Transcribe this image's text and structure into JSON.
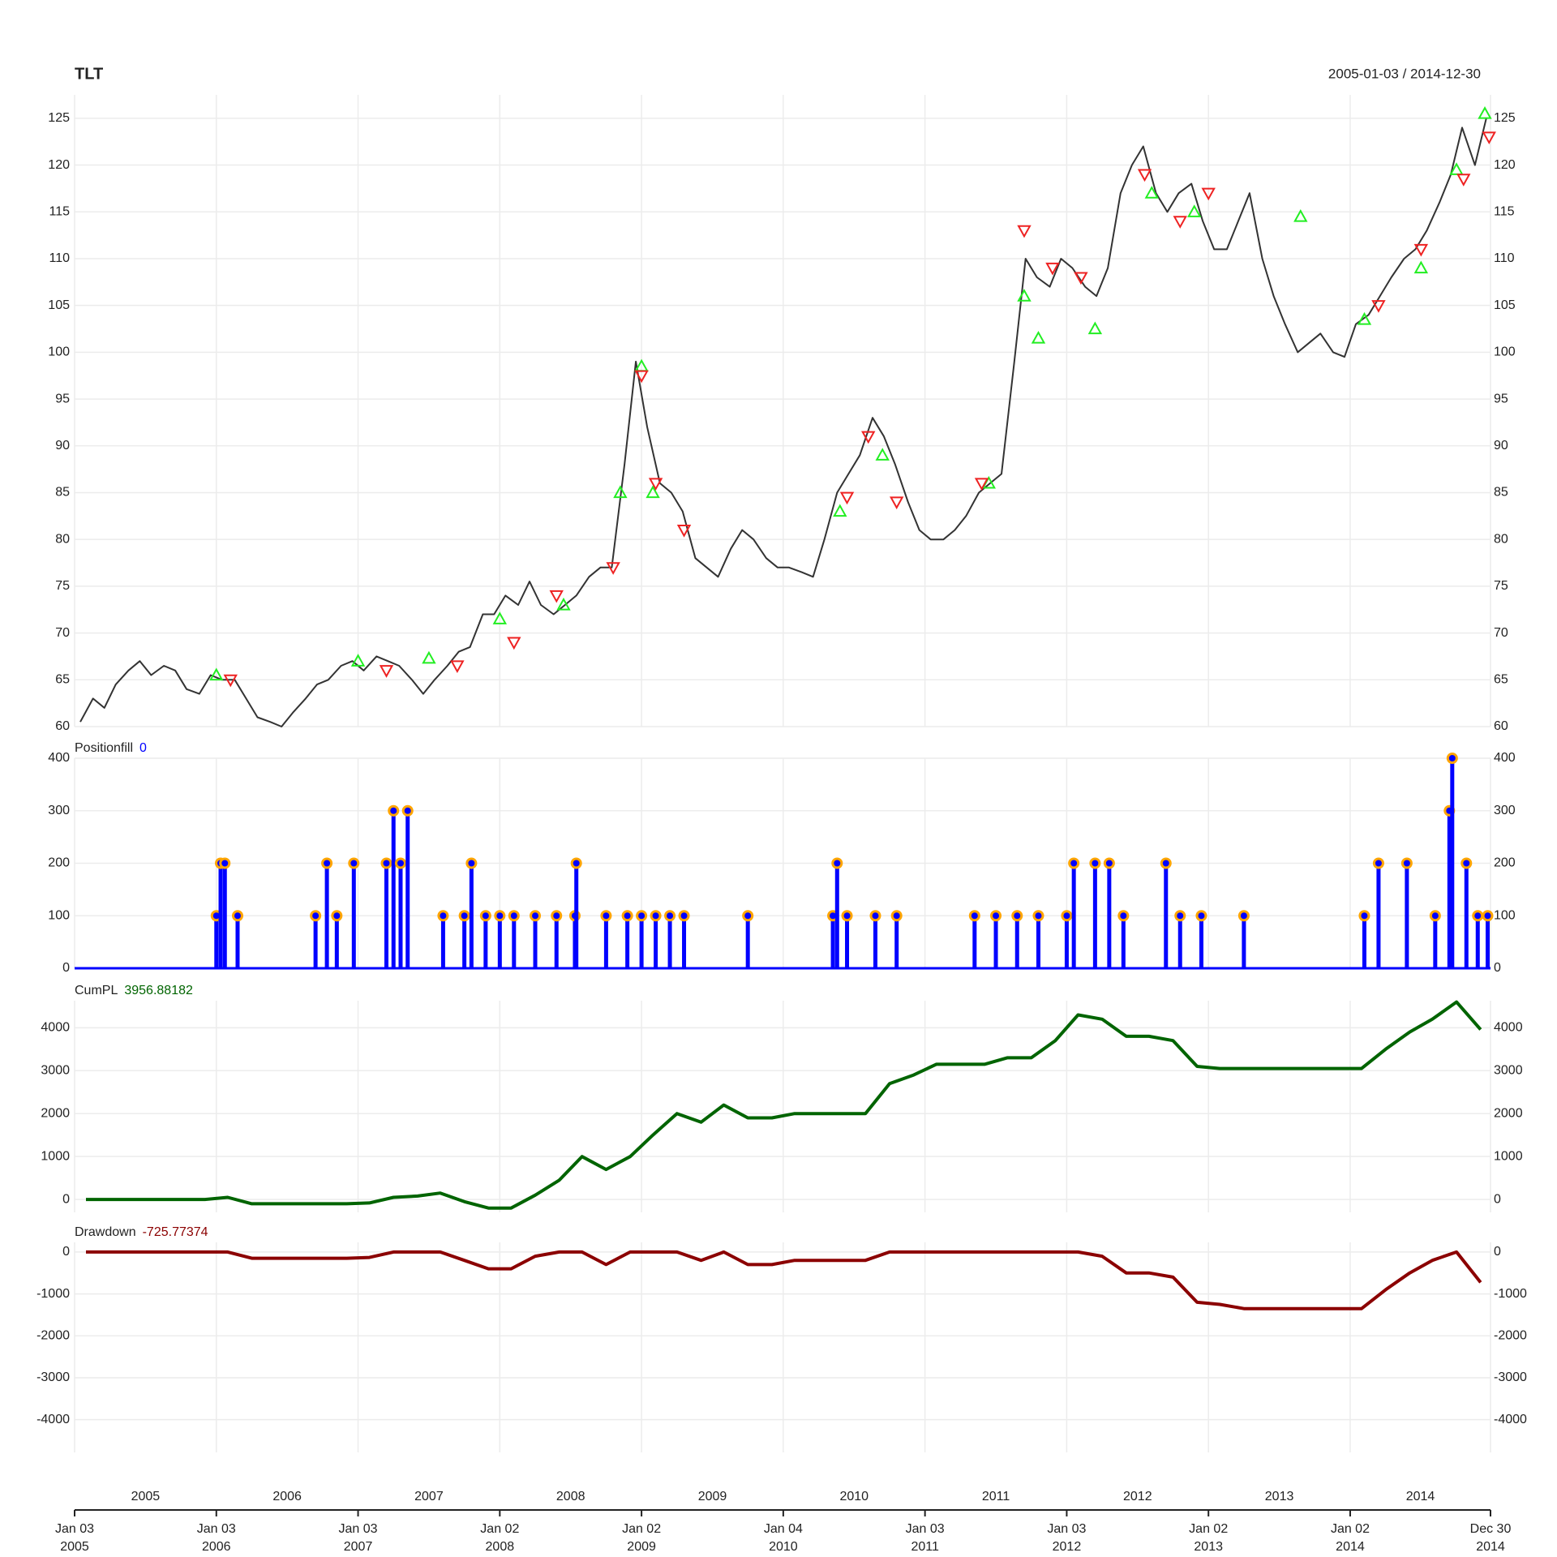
{
  "x_axis": {
    "xlim": [
      2005.0,
      2014.99
    ],
    "xticks": [
      {
        "value": 2005.0,
        "label": "Jan 03"
      },
      {
        "value": 2006.0,
        "label": "Jan 03"
      },
      {
        "value": 2007.0,
        "label": "Jan 03"
      },
      {
        "value": 2008.0,
        "label": "Jan 02"
      },
      {
        "value": 2009.0,
        "label": "Jan 02"
      },
      {
        "value": 2010.0,
        "label": "Jan 04"
      },
      {
        "value": 2011.0,
        "label": "Jan 03"
      },
      {
        "value": 2012.0,
        "label": "Jan 03"
      },
      {
        "value": 2013.0,
        "label": "Jan 02"
      },
      {
        "value": 2014.0,
        "label": "Jan 02"
      },
      {
        "value": 2014.99,
        "label": "Dec 30"
      }
    ],
    "xtick_years": [
      "2005",
      "2006",
      "2007",
      "2008",
      "2009",
      "2010",
      "2011",
      "2012",
      "2013",
      "2014",
      "2014"
    ],
    "year_labels": [
      "2005",
      "2006",
      "2007",
      "2008",
      "2009",
      "2010",
      "2011",
      "2012",
      "2013",
      "2014"
    ],
    "grid": true
  },
  "chart_data": [
    {
      "type": "line",
      "title": "TLT",
      "subtitle": "2005-01-03 / 2014-12-30",
      "ylim": [
        60,
        127.5
      ],
      "yticks": [
        60,
        65,
        70,
        75,
        80,
        85,
        90,
        95,
        100,
        105,
        110,
        115,
        120,
        125
      ],
      "series": [
        {
          "color": "#333333",
          "x": [
            2005.04,
            2005.13,
            2005.21,
            2005.29,
            2005.38,
            2005.46,
            2005.54,
            2005.63,
            2005.71,
            2005.79,
            2005.88,
            2005.96,
            2006.04,
            2006.13,
            2006.21,
            2006.29,
            2006.38,
            2006.46,
            2006.54,
            2006.63,
            2006.71,
            2006.79,
            2006.88,
            2006.96,
            2007.04,
            2007.13,
            2007.21,
            2007.29,
            2007.38,
            2007.46,
            2007.54,
            2007.63,
            2007.71,
            2007.79,
            2007.88,
            2007.96,
            2008.04,
            2008.13,
            2008.21,
            2008.29,
            2008.38,
            2008.46,
            2008.54,
            2008.63,
            2008.71,
            2008.79,
            2008.88,
            2008.96,
            2009.04,
            2009.13,
            2009.21,
            2009.29,
            2009.38,
            2009.46,
            2009.54,
            2009.63,
            2009.71,
            2009.79,
            2009.88,
            2009.96,
            2010.04,
            2010.13,
            2010.21,
            2010.29,
            2010.38,
            2010.46,
            2010.54,
            2010.63,
            2010.71,
            2010.79,
            2010.88,
            2010.96,
            2011.04,
            2011.13,
            2011.21,
            2011.29,
            2011.38,
            2011.46,
            2011.54,
            2011.63,
            2011.71,
            2011.79,
            2011.88,
            2011.96,
            2012.04,
            2012.13,
            2012.21,
            2012.29,
            2012.38,
            2012.46,
            2012.54,
            2012.63,
            2012.71,
            2012.79,
            2012.88,
            2012.96,
            2013.04,
            2013.13,
            2013.21,
            2013.29,
            2013.38,
            2013.46,
            2013.54,
            2013.63,
            2013.71,
            2013.79,
            2013.88,
            2013.96,
            2014.04,
            2014.13,
            2014.21,
            2014.29,
            2014.38,
            2014.46,
            2014.54,
            2014.63,
            2014.71,
            2014.79,
            2014.88,
            2014.96
          ],
          "values": [
            60.5,
            63,
            62,
            64.5,
            66,
            67,
            65.5,
            66.5,
            66,
            64,
            63.5,
            65.5,
            65,
            65,
            63,
            61,
            60.5,
            60,
            61.5,
            63,
            64.5,
            65,
            66.5,
            67,
            66,
            67.5,
            67,
            66.5,
            65,
            63.5,
            65,
            66.5,
            68,
            68.5,
            72,
            72,
            74,
            73,
            75.5,
            73,
            72,
            73,
            74,
            76,
            77,
            77,
            88,
            99,
            92,
            86,
            85,
            83,
            78,
            77,
            76,
            79,
            81,
            80,
            78,
            77,
            77,
            76.5,
            76,
            80,
            85,
            87,
            89,
            93,
            91,
            88,
            84,
            81,
            80,
            80,
            81,
            82.5,
            85,
            86,
            87,
            99,
            110,
            108,
            107,
            110,
            109,
            107,
            106,
            109,
            117,
            120,
            122,
            117,
            115,
            117,
            118,
            114,
            111,
            111,
            114,
            117,
            110,
            106,
            103,
            100,
            101,
            102,
            100,
            99.5,
            103,
            104,
            106,
            108,
            110,
            111,
            113,
            116,
            119,
            124,
            120,
            125
          ]
        },
        {
          "marker": "triangle-up",
          "color": "#22ee22",
          "x": [
            2006.0,
            2007.0,
            2007.5,
            2008.0,
            2008.45,
            2008.85,
            2009.0,
            2009.08,
            2010.4,
            2010.7,
            2011.45,
            2011.7,
            2011.8,
            2012.2,
            2012.6,
            2012.9,
            2013.65,
            2014.1,
            2014.5,
            2014.75,
            2014.95
          ],
          "values": [
            65.5,
            67,
            67.3,
            71.5,
            73,
            85,
            98.5,
            85,
            83,
            89,
            86,
            106,
            101.5,
            102.5,
            117,
            115,
            114.5,
            103.5,
            109,
            119.5,
            125.5
          ]
        },
        {
          "marker": "triangle-down",
          "color": "#ee2222",
          "x": [
            2006.1,
            2007.2,
            2007.7,
            2008.1,
            2008.4,
            2008.8,
            2009.0,
            2009.1,
            2009.3,
            2010.45,
            2010.6,
            2010.8,
            2011.4,
            2011.7,
            2011.9,
            2012.1,
            2012.55,
            2012.8,
            2013.0,
            2014.2,
            2014.5,
            2014.8,
            2014.98
          ],
          "values": [
            65,
            66,
            66.5,
            69,
            74,
            77,
            97.5,
            86,
            81,
            84.5,
            91,
            84,
            86,
            113,
            109,
            108,
            119,
            114,
            117,
            105,
            111,
            118.5,
            123
          ]
        }
      ]
    },
    {
      "type": "bar",
      "title": "Positionfill",
      "last_value": 0,
      "color": "#0000ff",
      "marker_color": "#ffa500",
      "ylim": [
        0,
        400
      ],
      "yticks": [
        0,
        100,
        200,
        300,
        400
      ],
      "x": [
        2006.0,
        2006.03,
        2006.06,
        2006.15,
        2006.7,
        2006.78,
        2006.85,
        2006.97,
        2007.2,
        2007.25,
        2007.3,
        2007.35,
        2007.6,
        2007.75,
        2007.8,
        2007.9,
        2008.0,
        2008.1,
        2008.25,
        2008.4,
        2008.53,
        2008.54,
        2008.75,
        2008.9,
        2009.0,
        2009.1,
        2009.2,
        2009.3,
        2009.75,
        2010.35,
        2010.38,
        2010.45,
        2010.65,
        2010.8,
        2011.35,
        2011.5,
        2011.65,
        2011.8,
        2012.0,
        2012.05,
        2012.2,
        2012.3,
        2012.4,
        2012.7,
        2012.8,
        2012.95,
        2013.25,
        2014.1,
        2014.2,
        2014.4,
        2014.6,
        2014.7,
        2014.72,
        2014.82,
        2014.9,
        2014.97
      ],
      "values": [
        100,
        200,
        200,
        100,
        100,
        200,
        100,
        200,
        200,
        300,
        200,
        300,
        100,
        100,
        200,
        100,
        100,
        100,
        100,
        100,
        100,
        200,
        100,
        100,
        100,
        100,
        100,
        100,
        100,
        100,
        200,
        100,
        100,
        100,
        100,
        100,
        100,
        100,
        100,
        200,
        200,
        200,
        100,
        200,
        100,
        100,
        100,
        100,
        200,
        200,
        100,
        300,
        400,
        200,
        100,
        100
      ]
    },
    {
      "type": "line",
      "title": "CumPL",
      "last_value": 3956.88182,
      "ylim": [
        -300,
        4630
      ],
      "yticks": [
        0,
        1000,
        2000,
        3000,
        4000
      ],
      "series": [
        {
          "color": "#006400",
          "x": [
            2005.08,
            2005.25,
            2005.42,
            2005.58,
            2005.75,
            2005.92,
            2006.08,
            2006.25,
            2006.42,
            2006.58,
            2006.75,
            2006.92,
            2007.08,
            2007.25,
            2007.42,
            2007.58,
            2007.75,
            2007.92,
            2008.08,
            2008.25,
            2008.42,
            2008.58,
            2008.75,
            2008.92,
            2009.08,
            2009.25,
            2009.42,
            2009.58,
            2009.75,
            2009.92,
            2010.08,
            2010.25,
            2010.42,
            2010.58,
            2010.75,
            2010.92,
            2011.08,
            2011.25,
            2011.42,
            2011.58,
            2011.75,
            2011.92,
            2012.08,
            2012.25,
            2012.42,
            2012.58,
            2012.75,
            2012.92,
            2013.08,
            2013.25,
            2013.42,
            2013.58,
            2013.75,
            2013.92,
            2014.08,
            2014.25,
            2014.42,
            2014.58,
            2014.75,
            2014.92
          ],
          "values": [
            0,
            0,
            0,
            0,
            0,
            0,
            50,
            -100,
            -100,
            -100,
            -100,
            -100,
            -80,
            50,
            80,
            150,
            -50,
            -200,
            -200,
            100,
            450,
            1000,
            700,
            1000,
            1500,
            2000,
            1800,
            2200,
            1900,
            1900,
            2000,
            2000,
            2000,
            2000,
            2700,
            2900,
            3150,
            3150,
            3150,
            3300,
            3300,
            3700,
            4300,
            4200,
            3800,
            3800,
            3700,
            3100,
            3050,
            3050,
            3050,
            3050,
            3050,
            3050,
            3050,
            3500,
            3900,
            4200,
            4600,
            3956.88182
          ]
        }
      ]
    },
    {
      "type": "line",
      "title": "Drawdown",
      "last_value": -725.77374,
      "ylim": [
        -4780,
        230
      ],
      "yticks": [
        0,
        -1000,
        -2000,
        -3000,
        -4000
      ],
      "series": [
        {
          "color": "#8b0000",
          "x": [
            2005.08,
            2005.25,
            2005.42,
            2005.58,
            2005.75,
            2005.92,
            2006.08,
            2006.25,
            2006.42,
            2006.58,
            2006.75,
            2006.92,
            2007.08,
            2007.25,
            2007.42,
            2007.58,
            2007.75,
            2007.92,
            2008.08,
            2008.25,
            2008.42,
            2008.58,
            2008.75,
            2008.92,
            2009.08,
            2009.25,
            2009.42,
            2009.58,
            2009.75,
            2009.92,
            2010.08,
            2010.25,
            2010.42,
            2010.58,
            2010.75,
            2010.92,
            2011.08,
            2011.25,
            2011.42,
            2011.58,
            2011.75,
            2011.92,
            2012.08,
            2012.25,
            2012.42,
            2012.58,
            2012.75,
            2012.92,
            2013.08,
            2013.25,
            2013.42,
            2013.58,
            2013.75,
            2013.92,
            2014.08,
            2014.25,
            2014.42,
            2014.58,
            2014.75,
            2014.92
          ],
          "values": [
            0,
            0,
            0,
            0,
            0,
            0,
            0,
            -150,
            -150,
            -150,
            -150,
            -150,
            -130,
            0,
            0,
            0,
            -200,
            -400,
            -400,
            -100,
            0,
            0,
            -300,
            0,
            0,
            0,
            -200,
            0,
            -300,
            -300,
            -200,
            -200,
            -200,
            -200,
            0,
            0,
            0,
            0,
            0,
            0,
            0,
            0,
            0,
            -100,
            -500,
            -500,
            -600,
            -1200,
            -1250,
            -1350,
            -1350,
            -1350,
            -1350,
            -1350,
            -1350,
            -900,
            -500,
            -200,
            0,
            -725.77374
          ]
        }
      ]
    }
  ]
}
